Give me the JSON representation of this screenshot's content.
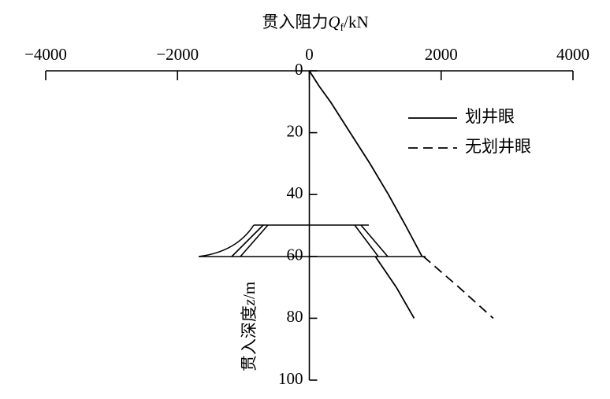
{
  "chart_data": {
    "type": "line",
    "x_label": {
      "text": "贯入阻力",
      "symbol": "Q",
      "subscript": "f",
      "unit": "/kN"
    },
    "y_label": {
      "text": "贯入深度",
      "symbol": "z",
      "unit": "/m"
    },
    "xlim": [
      -4000,
      4000
    ],
    "xticks": [
      {
        "value": -4000,
        "label": "−4000"
      },
      {
        "value": -2000,
        "label": "−2000"
      },
      0,
      2000,
      4000
    ],
    "ylim": [
      0,
      100
    ],
    "yticks": [
      0,
      20,
      40,
      60,
      80,
      100
    ],
    "y_inverted": true,
    "x_axis_position": "top",
    "series": [
      {
        "name": "划井眼",
        "color": "#000000",
        "dash": "solid",
        "x": [
          0,
          150,
          320,
          620,
          920,
          1200,
          1460,
          1710,
          null,
          1000,
          1320,
          1590
        ],
        "values": [
          0,
          5,
          10,
          20,
          30,
          40,
          50,
          60,
          null,
          60,
          70,
          80
        ]
      },
      {
        "name": "无划井眼",
        "color": "#000000",
        "dash": "dashed",
        "x": [
          1730,
          2270,
          2790
        ],
        "values": [
          60,
          70,
          80
        ]
      }
    ]
  }
}
